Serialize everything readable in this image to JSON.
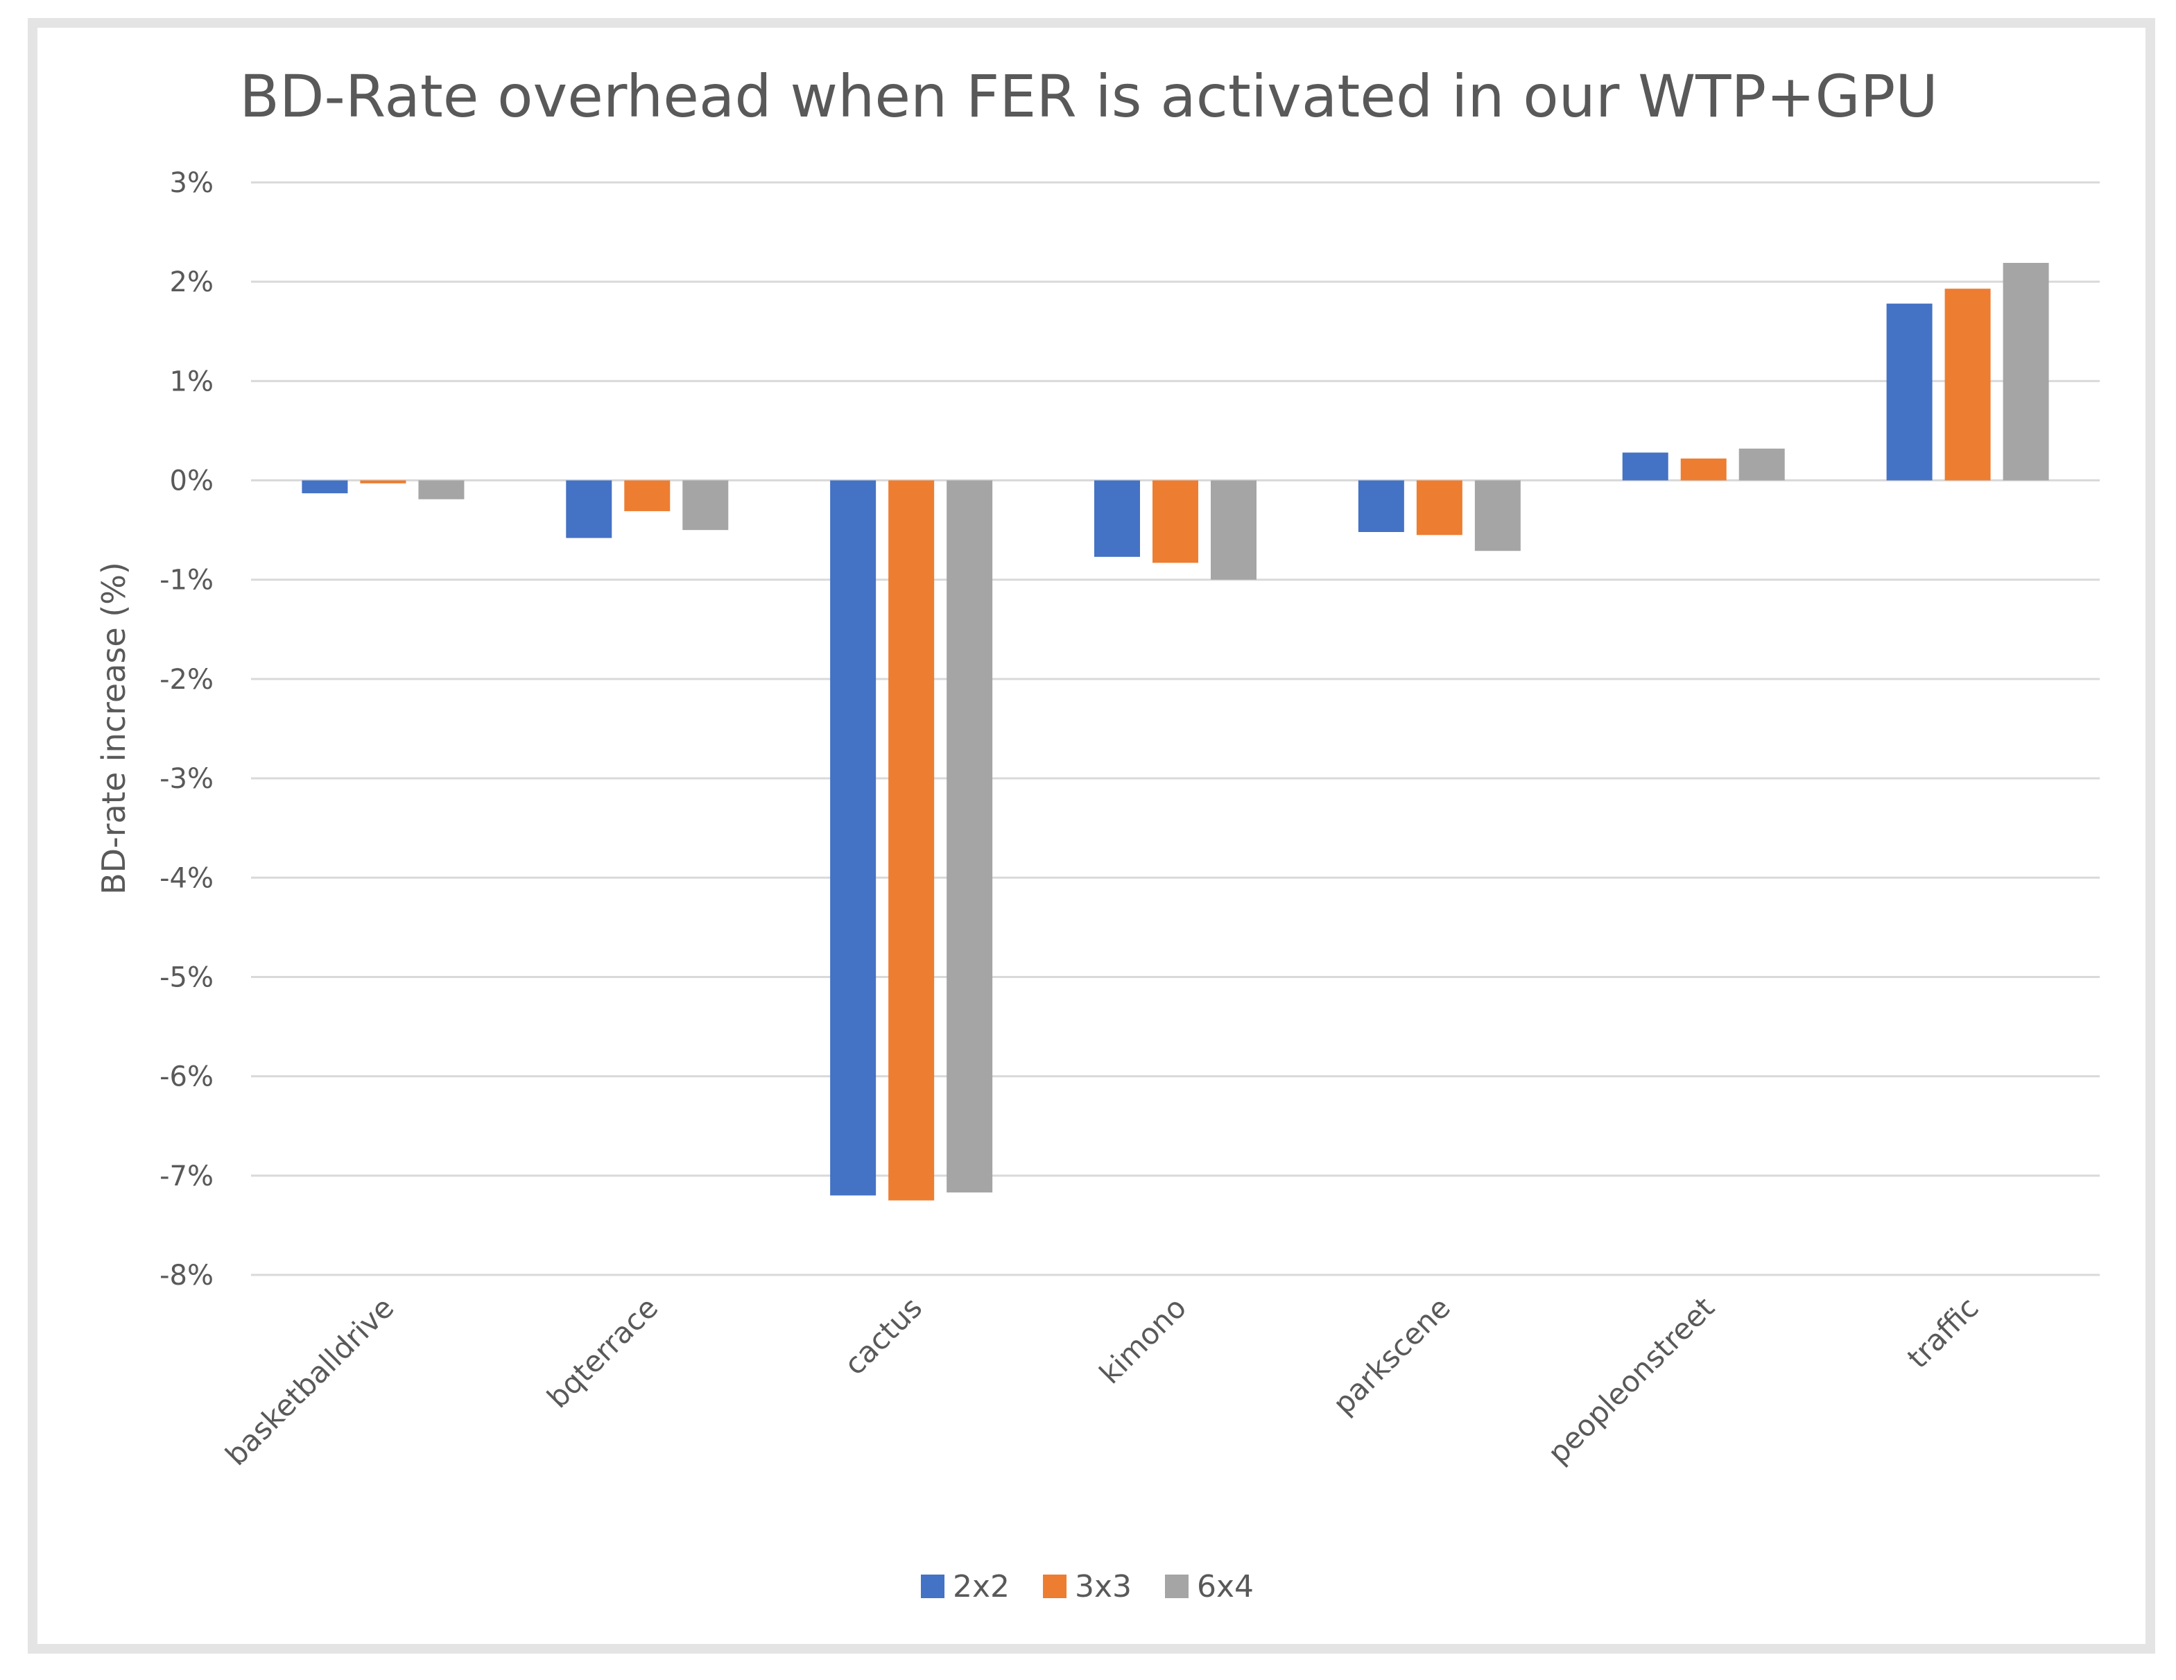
{
  "chart_data": {
    "type": "bar",
    "title": "BD-Rate overhead when FER is activated in our WTP+GPU",
    "xlabel": "",
    "ylabel": "BD-rate increase (%)",
    "ylim": [
      -8,
      3
    ],
    "yticks": [
      3,
      2,
      1,
      0,
      -1,
      -2,
      -3,
      -4,
      -5,
      -6,
      -7,
      -8
    ],
    "ytick_labels": [
      "3%",
      "2%",
      "1%",
      "0%",
      "-1%",
      "-2%",
      "-3%",
      "-4%",
      "-5%",
      "-6%",
      "-7%",
      "-8%"
    ],
    "grid": true,
    "legend_position": "bottom",
    "categories": [
      "basketballdrive",
      "bqterrace",
      "cactus",
      "kimono",
      "parkscene",
      "peopleonstreet",
      "traffic"
    ],
    "series": [
      {
        "name": "2x2",
        "color": "#4472c4",
        "values": [
          -0.13,
          -0.58,
          -7.2,
          -0.77,
          -0.52,
          0.28,
          1.78
        ]
      },
      {
        "name": "3x3",
        "color": "#ed7d31",
        "values": [
          -0.03,
          -0.31,
          -7.25,
          -0.83,
          -0.55,
          0.22,
          1.93
        ]
      },
      {
        "name": "6x4",
        "color": "#a5a5a5",
        "values": [
          -0.19,
          -0.5,
          -7.17,
          -1.0,
          -0.71,
          0.32,
          2.19
        ]
      }
    ]
  }
}
